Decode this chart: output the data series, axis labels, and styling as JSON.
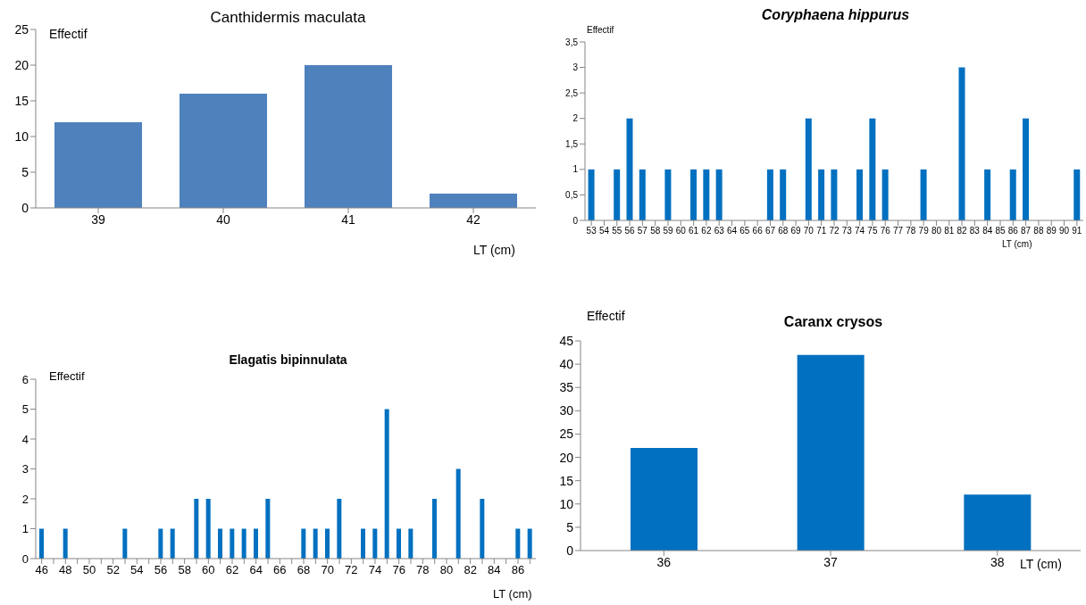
{
  "chart_data": [
    {
      "type": "bar",
      "title": "Canthidermis maculata",
      "ylabel": "Effectif",
      "xlabel": "LT (cm)",
      "categories": [
        "39",
        "40",
        "41",
        "42"
      ],
      "values": [
        12,
        16,
        20,
        2
      ],
      "color": "#4f81bd",
      "ylim": [
        0,
        25
      ],
      "yticks": [
        0,
        5,
        10,
        15,
        20,
        25
      ],
      "grid": false,
      "legend": false
    },
    {
      "type": "bar",
      "title": "Coryphaena hippurus",
      "ylabel": "Effectif",
      "xlabel": "LT (cm)",
      "categories": [
        "53",
        "54",
        "55",
        "56",
        "57",
        "58",
        "59",
        "60",
        "61",
        "62",
        "63",
        "64",
        "65",
        "66",
        "67",
        "68",
        "69",
        "70",
        "71",
        "72",
        "73",
        "74",
        "75",
        "76",
        "77",
        "78",
        "79",
        "80",
        "81",
        "82",
        "83",
        "84",
        "85",
        "86",
        "87",
        "88",
        "89",
        "90",
        "91"
      ],
      "values": [
        1,
        0,
        1,
        2,
        1,
        0,
        1,
        0,
        1,
        1,
        1,
        0,
        0,
        0,
        1,
        1,
        0,
        2,
        1,
        1,
        0,
        1,
        2,
        1,
        0,
        0,
        1,
        0,
        0,
        3,
        0,
        1,
        0,
        1,
        2,
        0,
        0,
        0,
        1
      ],
      "color": "#0070c0",
      "ylim": [
        0,
        3.5
      ],
      "yticks": [
        0,
        {
          "value": 0.5,
          "label": "0,5"
        },
        1,
        {
          "value": 1.5,
          "label": "1,5"
        },
        2,
        {
          "value": 2.5,
          "label": "2,5"
        },
        3,
        {
          "value": 3.5,
          "label": "3,5"
        }
      ],
      "grid": false,
      "legend": false
    },
    {
      "type": "bar",
      "title": "Elagatis bipinnulata",
      "ylabel": "Effectif",
      "xlabel": "LT (cm)",
      "categories": [
        "46",
        null,
        "48",
        null,
        "50",
        null,
        "52",
        null,
        "54",
        null,
        "56",
        null,
        "58",
        null,
        "60",
        null,
        "62",
        null,
        "64",
        null,
        "66",
        null,
        "68",
        null,
        "70",
        null,
        "72",
        null,
        "74",
        null,
        "76",
        null,
        "78",
        null,
        "80",
        null,
        "82",
        null,
        "84",
        null,
        "86",
        null
      ],
      "values": [
        1,
        0,
        1,
        0,
        0,
        0,
        0,
        1,
        0,
        0,
        1,
        1,
        0,
        2,
        2,
        1,
        1,
        1,
        1,
        2,
        0,
        0,
        1,
        1,
        1,
        2,
        0,
        1,
        1,
        5,
        1,
        1,
        0,
        2,
        0,
        3,
        0,
        2,
        0,
        0,
        1,
        1
      ],
      "color": "#0070c0",
      "ylim": [
        0,
        6
      ],
      "yticks": [
        0,
        1,
        2,
        3,
        4,
        5,
        6
      ],
      "grid": false,
      "legend": false
    },
    {
      "type": "bar",
      "title": "Caranx crysos",
      "ylabel": "Effectif",
      "xlabel": "LT (cm)",
      "categories": [
        "36",
        "37",
        "38"
      ],
      "values": [
        22,
        42,
        12
      ],
      "color": "#0070c0",
      "ylim": [
        0,
        45
      ],
      "yticks": [
        0,
        5,
        10,
        15,
        20,
        25,
        30,
        35,
        40,
        45
      ],
      "grid": false,
      "legend": false
    }
  ]
}
